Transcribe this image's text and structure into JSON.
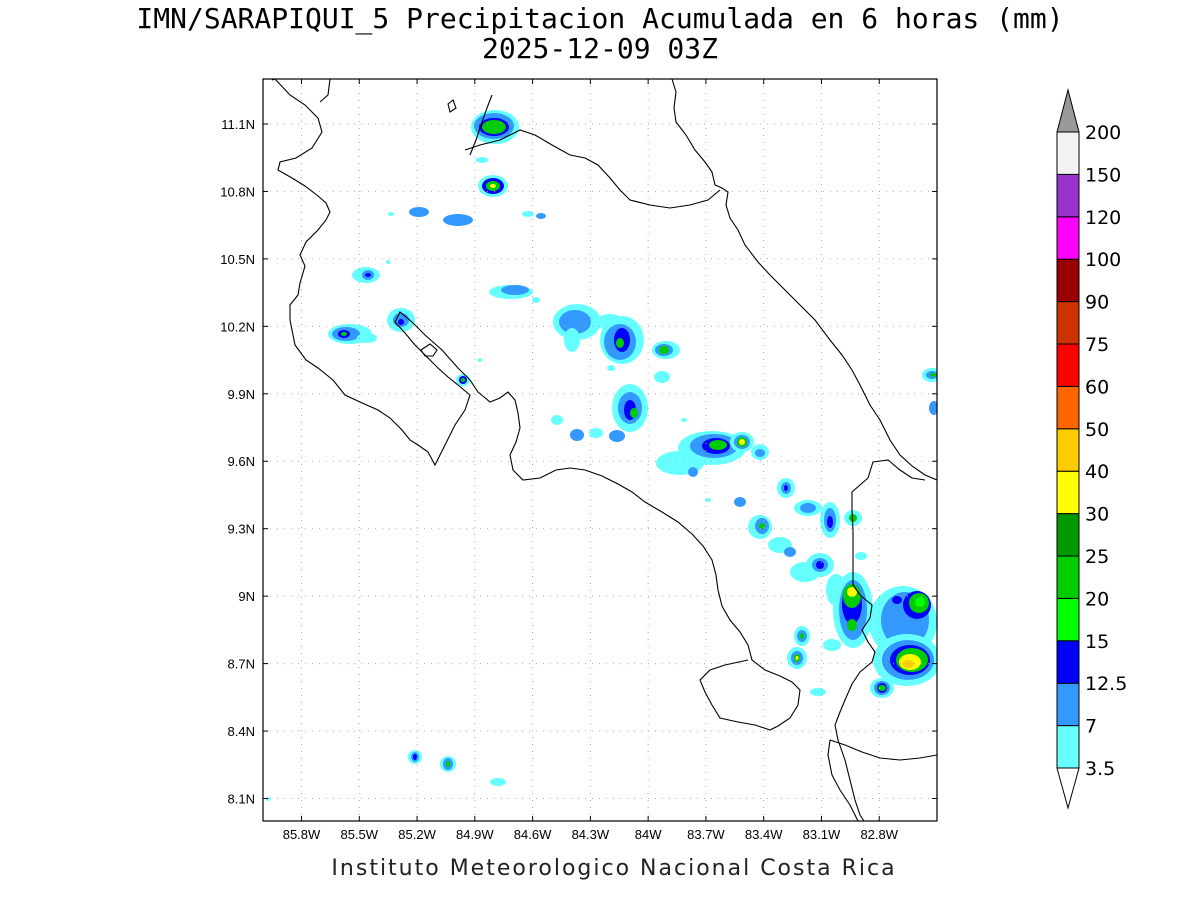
{
  "title": {
    "line1": "IMN/SARAPIQUI_5 Precipitacion Acumulada en 6 horas (mm)",
    "line2": "2025-12-09 03Z"
  },
  "footer": "Instituto Meteorologico Nacional Costa Rica",
  "map": {
    "lon_labels": [
      "85.8W",
      "85.5W",
      "85.2W",
      "84.9W",
      "84.6W",
      "84.3W",
      "84W",
      "83.7W",
      "83.4W",
      "83.1W",
      "82.8W"
    ],
    "lat_labels": [
      "11.1N",
      "10.8N",
      "10.5N",
      "10.2N",
      "9.9N",
      "9.6N",
      "9.3N",
      "9N",
      "8.7N",
      "8.4N",
      "8.1N"
    ],
    "lon_range": [
      -86.0,
      -82.5
    ],
    "lat_range": [
      8.0,
      11.3
    ]
  },
  "colorbar": {
    "levels": [
      "3.5",
      "7",
      "12.5",
      "15",
      "20",
      "25",
      "30",
      "40",
      "50",
      "60",
      "75",
      "90",
      "100",
      "120",
      "150",
      "200"
    ],
    "colors": [
      "#66ffff",
      "#3399ff",
      "#0000ff",
      "#00ff00",
      "#00cc00",
      "#009900",
      "#ffff00",
      "#ffcc00",
      "#ff6600",
      "#ff0000",
      "#cc3300",
      "#990000",
      "#ff00ff",
      "#9933cc",
      "#f2f2f2",
      "#999999"
    ]
  }
}
